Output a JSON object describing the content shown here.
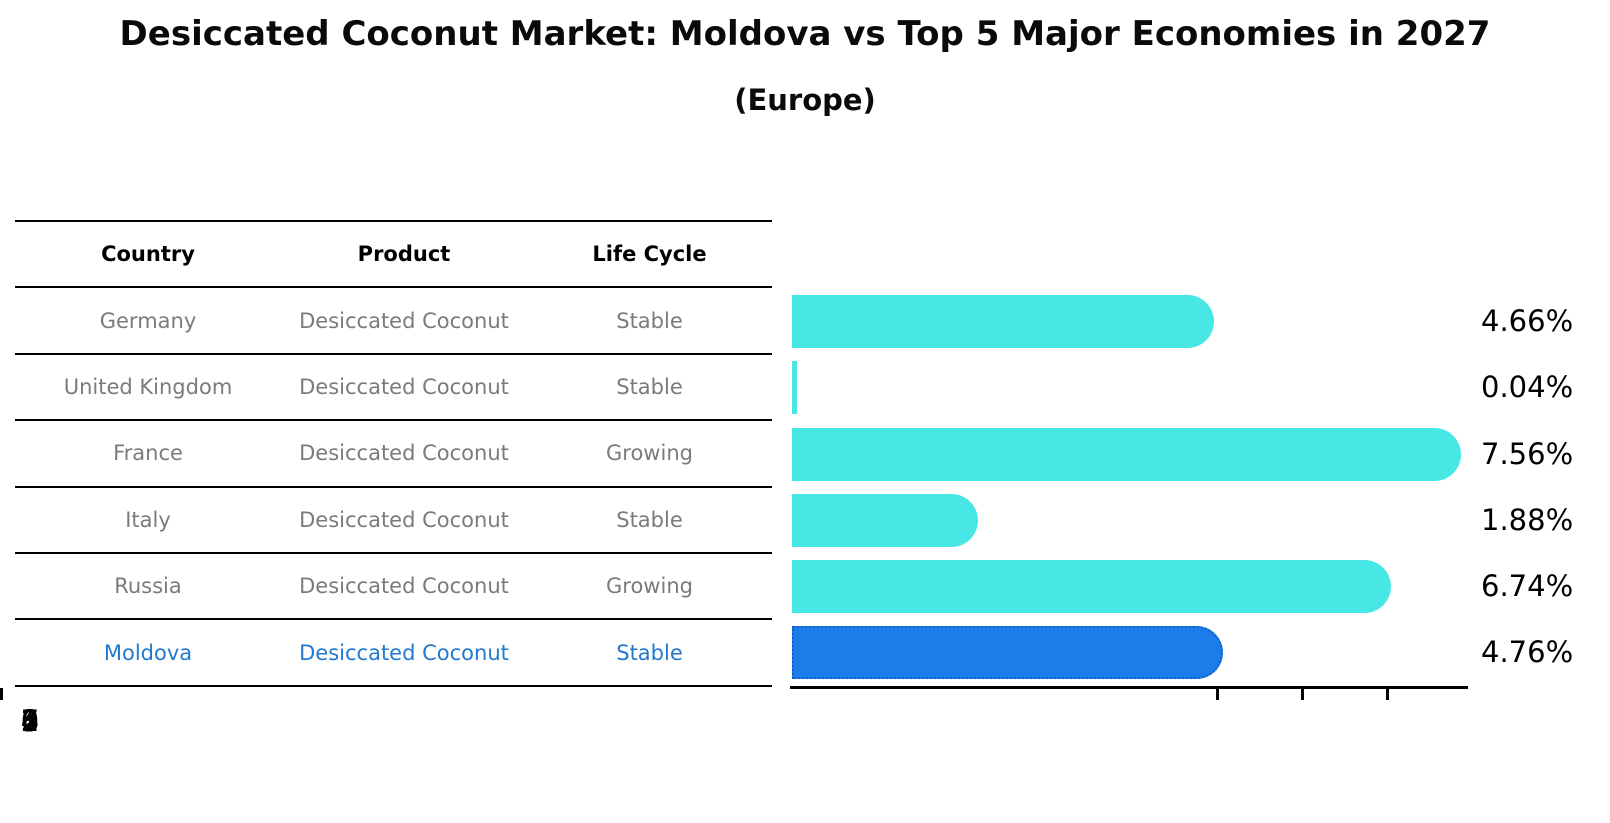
{
  "title": "Desiccated Coconut Market: Moldova vs Top 5 Major Economies in 2027",
  "subtitle": "(Europe)",
  "table": {
    "headers": [
      "Country",
      "Product",
      "Life Cycle"
    ],
    "rows": [
      {
        "country": "Germany",
        "product": "Desiccated Coconut",
        "life_cycle": "Stable"
      },
      {
        "country": "United Kingdom",
        "product": "Desiccated Coconut",
        "life_cycle": "Stable"
      },
      {
        "country": "France",
        "product": "Desiccated Coconut",
        "life_cycle": "Growing"
      },
      {
        "country": "Italy",
        "product": "Desiccated Coconut",
        "life_cycle": "Stable"
      },
      {
        "country": "Russia",
        "product": "Desiccated Coconut",
        "life_cycle": "Growing"
      },
      {
        "country": "Moldova",
        "product": "Desiccated Coconut",
        "life_cycle": "Stable"
      }
    ],
    "highlighted_country": "Moldova"
  },
  "chart_data": {
    "type": "bar",
    "orientation": "horizontal",
    "title": "Desiccated Coconut Market: Moldova vs Top 5 Major Economies in 2027 (Europe)",
    "categories": [
      "Germany",
      "United Kingdom",
      "France",
      "Italy",
      "Russia",
      "Moldova"
    ],
    "values": [
      4.66,
      0.04,
      7.56,
      1.88,
      6.74,
      4.76
    ],
    "value_labels": [
      "4.66%",
      "0.04%",
      "7.56%",
      "1.88%",
      "6.74%",
      "4.76%"
    ],
    "xticks": [
      "0",
      "1",
      "2",
      "3",
      "4",
      "5",
      "6",
      "7"
    ],
    "xlim": [
      0,
      7.95
    ],
    "grid": false,
    "legend": false,
    "bar_color": "#48E7E5",
    "highlight_index": 5,
    "highlight_bar_color": "#1C7CEA",
    "highlight_border_color": "#0E5FCC"
  },
  "colors": {
    "text_muted": "#7b7b7b",
    "highlight_text": "#2379cf",
    "axis": "#000000"
  }
}
